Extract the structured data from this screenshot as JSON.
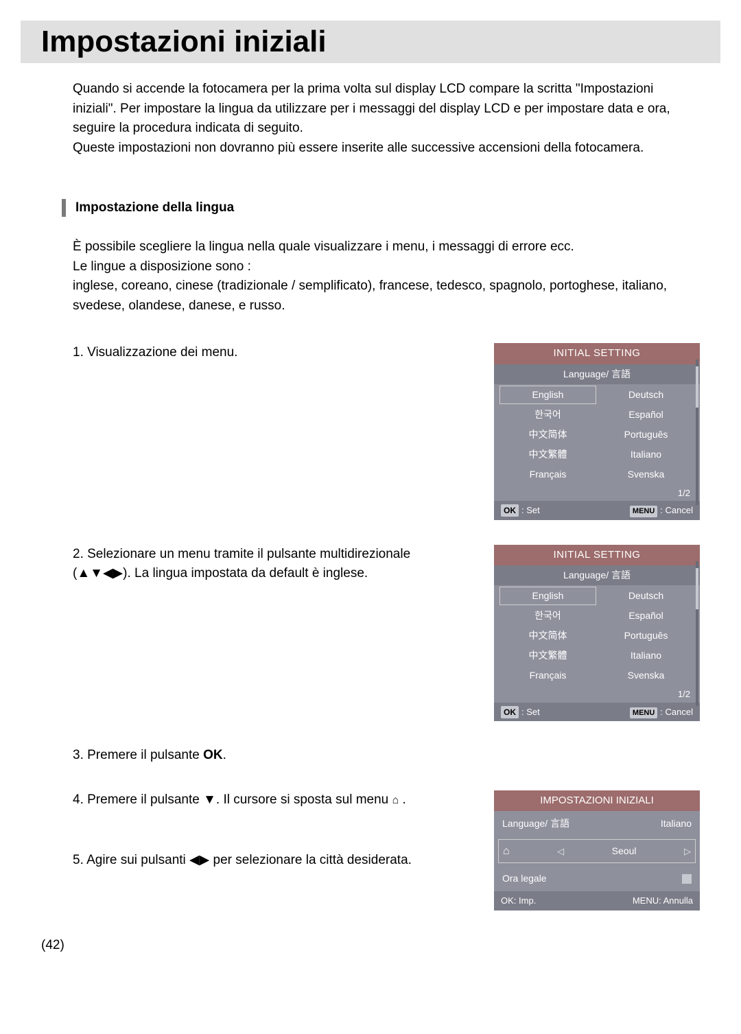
{
  "title": "Impostazioni iniziali",
  "intro1": "Quando si accende la fotocamera per la prima volta sul display LCD compare la scritta \"Impostazioni iniziali\". Per impostare la lingua da utilizzare per i messaggi del display LCD e per impostare data e ora, seguire la procedura indicata di seguito.",
  "intro2": "Queste impostazioni non dovranno più essere inserite alle successive accensioni della fotocamera.",
  "section": {
    "title": "Impostazione della lingua",
    "p1": "È possibile scegliere la lingua nella quale visualizzare i menu, i messaggi di errore ecc.",
    "p2": "Le lingue a disposizione sono :",
    "p3": "inglese, coreano, cinese (tradizionale / semplificato), francese, tedesco, spagnolo, portoghese, italiano, svedese, olandese, danese, e russo."
  },
  "step1": "1. Visualizzazione dei menu.",
  "step2a": "2. Selezionare un menu tramite il pulsante multidirezionale",
  "step2b": "(▲▼◀▶). La lingua impostata da default è inglese.",
  "step3a": "3. Premere il pulsante ",
  "step3b": "OK",
  "step3c": ".",
  "step4a": "4. Premere il pulsante ▼. Il cursore si sposta sul menu ",
  "step4c": " .",
  "step5": "5. Agire sui pulsanti ◀▶ per selezionare la città desiderata.",
  "lcd": {
    "title": "INITIAL SETTING",
    "subtitle": "Language/ 言語",
    "langs": [
      "English",
      "Deutsch",
      "한국어",
      "Español",
      "中文简体",
      "Português",
      "中文繁體",
      "Italiano",
      "Français",
      "Svenska"
    ],
    "page": "1/2",
    "ok": "OK",
    "set": ": Set",
    "menu": "MENU",
    "cancel": ": Cancel"
  },
  "lcd3": {
    "title": "IMPOSTAZIONI INIZIALI",
    "lang_label": "Language/ 言語",
    "lang_value": "Italiano",
    "city": "Seoul",
    "dst": "Ora legale",
    "ok": "OK",
    "imp": ": Imp.",
    "menu": "MENU",
    "ann": ": Annulla"
  },
  "pagenum": "42",
  "house_icon": "⌂",
  "colors": {
    "title_bg": "#e0e0e0",
    "lcd_bg": "#8e909c",
    "lcd_head": "#9d6c6c",
    "lcd_sub": "#7a7c88",
    "lcd_btn": "#c7c9d1"
  }
}
